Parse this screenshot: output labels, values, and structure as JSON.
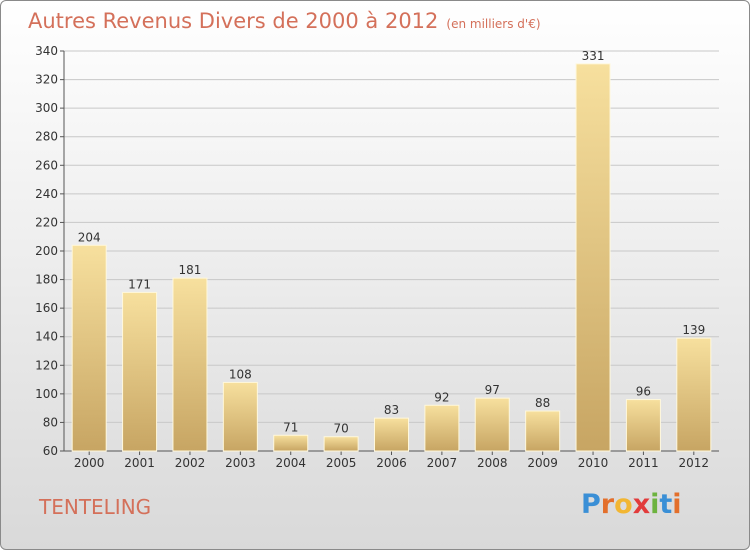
{
  "header": {
    "title": "Autres Revenus Divers de 2000 à 2012",
    "unit": "(en milliers d'€)"
  },
  "footer": {
    "town": "TENTELING",
    "logo": "Proxiti"
  },
  "colors": {
    "title": "#d4705a",
    "bar_light": "#f5dc9a",
    "bar_dark": "#c9a865"
  },
  "chart_data": {
    "type": "bar",
    "title": "Autres Revenus Divers de 2000 à 2012",
    "subtitle": "(en milliers d'€)",
    "categories": [
      "2000",
      "2001",
      "2002",
      "2003",
      "2004",
      "2005",
      "2006",
      "2007",
      "2008",
      "2009",
      "2010",
      "2011",
      "2012"
    ],
    "values": [
      204,
      171,
      181,
      108,
      71,
      70,
      83,
      92,
      97,
      88,
      331,
      96,
      139
    ],
    "ylim": [
      60,
      340
    ],
    "yticks": [
      60,
      80,
      100,
      120,
      140,
      160,
      180,
      200,
      220,
      240,
      260,
      280,
      300,
      320,
      340
    ],
    "grid": true,
    "xlabel": "",
    "ylabel": ""
  }
}
